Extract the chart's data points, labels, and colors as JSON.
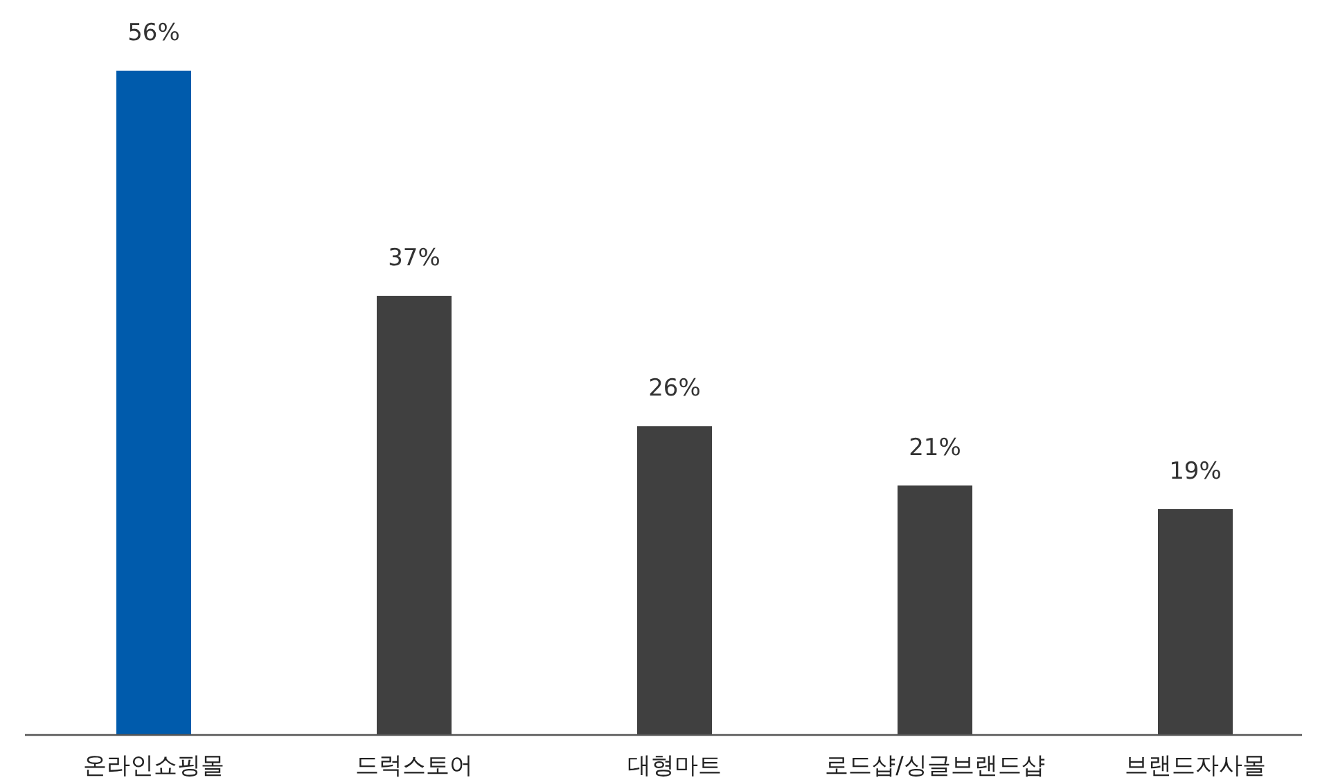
{
  "chart_data": {
    "type": "bar",
    "categories": [
      "온라인쇼핑몰",
      "드럭스토어",
      "대형마트",
      "로드샵/싱글브랜드샵",
      "브랜드자사몰"
    ],
    "values": [
      56,
      37,
      26,
      21,
      19
    ],
    "colors": [
      "#005bac",
      "#404040",
      "#404040",
      "#404040",
      "#404040"
    ],
    "value_labels": [
      "56%",
      "37%",
      "26%",
      "21%",
      "19%"
    ],
    "grid": false
  }
}
